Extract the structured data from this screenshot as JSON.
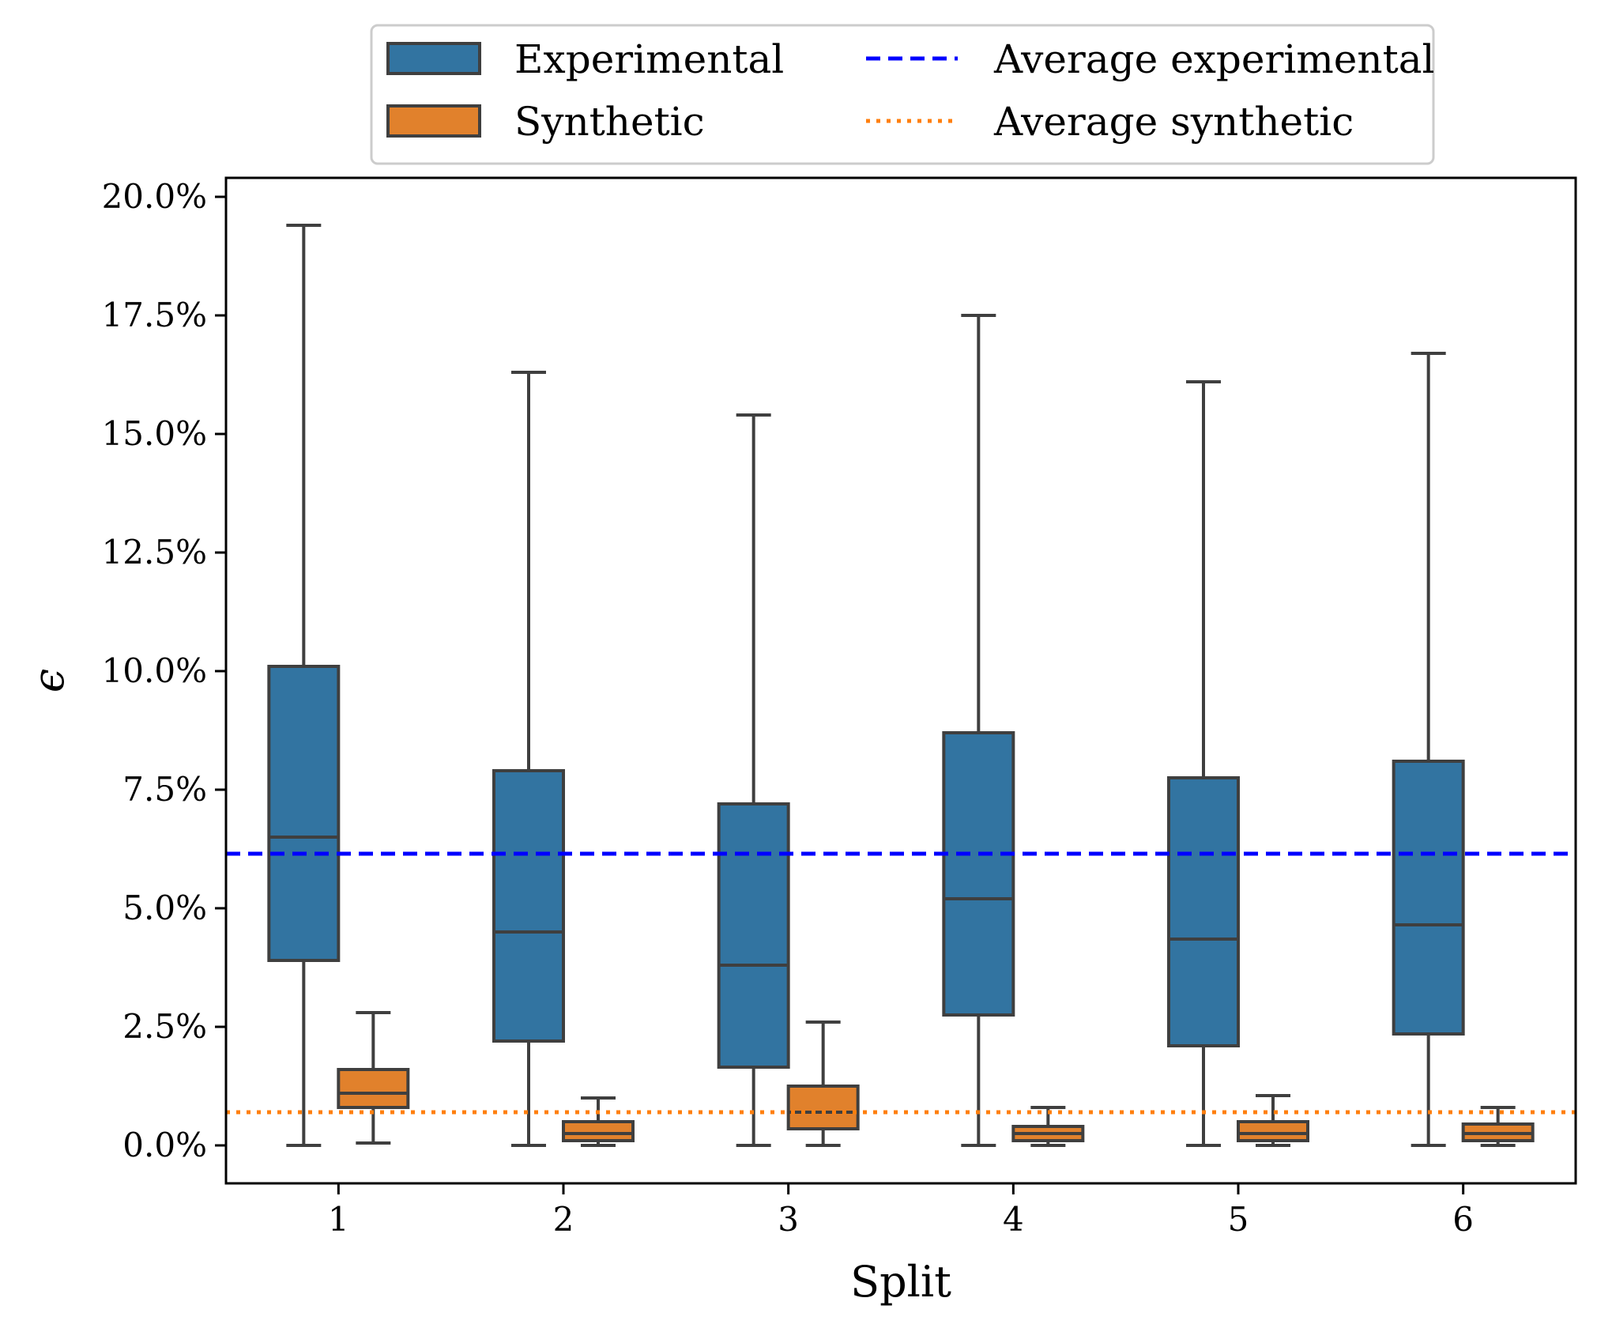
{
  "chart_data": {
    "type": "box",
    "xlabel": "Split",
    "ylabel": "ϵ",
    "categories": [
      "1",
      "2",
      "3",
      "4",
      "5",
      "6"
    ],
    "ylim": [
      -0.8,
      20.4
    ],
    "yticks": [
      0.0,
      2.5,
      5.0,
      7.5,
      10.0,
      12.5,
      15.0,
      17.5,
      20.0
    ],
    "ytick_labels": [
      "0.0%",
      "2.5%",
      "5.0%",
      "7.5%",
      "10.0%",
      "12.5%",
      "15.0%",
      "17.5%",
      "20.0%"
    ],
    "grid": false,
    "legend_position": "top-center",
    "series": [
      {
        "name": "Experimental",
        "color": "#3274a1",
        "boxes": [
          {
            "min": 0.0,
            "q1": 3.9,
            "median": 6.5,
            "q3": 10.1,
            "max": 19.4
          },
          {
            "min": 0.0,
            "q1": 2.2,
            "median": 4.5,
            "q3": 7.9,
            "max": 16.3
          },
          {
            "min": 0.0,
            "q1": 1.65,
            "median": 3.8,
            "q3": 7.2,
            "max": 15.4
          },
          {
            "min": 0.0,
            "q1": 2.75,
            "median": 5.2,
            "q3": 8.7,
            "max": 17.5
          },
          {
            "min": 0.0,
            "q1": 2.1,
            "median": 4.35,
            "q3": 7.75,
            "max": 16.1
          },
          {
            "min": 0.0,
            "q1": 2.35,
            "median": 4.65,
            "q3": 8.1,
            "max": 16.7
          }
        ]
      },
      {
        "name": "Synthetic",
        "color": "#e1812c",
        "boxes": [
          {
            "min": 0.05,
            "q1": 0.8,
            "median": 1.1,
            "q3": 1.6,
            "max": 2.8
          },
          {
            "min": 0.0,
            "q1": 0.1,
            "median": 0.25,
            "q3": 0.5,
            "max": 1.0
          },
          {
            "min": 0.0,
            "q1": 0.35,
            "median": 0.7,
            "q3": 1.25,
            "max": 2.6
          },
          {
            "min": 0.0,
            "q1": 0.1,
            "median": 0.25,
            "q3": 0.4,
            "max": 0.8
          },
          {
            "min": 0.0,
            "q1": 0.1,
            "median": 0.25,
            "q3": 0.5,
            "max": 1.05
          },
          {
            "min": 0.0,
            "q1": 0.1,
            "median": 0.25,
            "q3": 0.45,
            "max": 0.8
          }
        ]
      }
    ],
    "reference_lines": [
      {
        "name": "Average experimental",
        "value": 6.15,
        "color": "#0000ff",
        "style": "dashed"
      },
      {
        "name": "Average synthetic",
        "value": 0.7,
        "color": "#ff7f0e",
        "style": "dotted"
      }
    ]
  }
}
